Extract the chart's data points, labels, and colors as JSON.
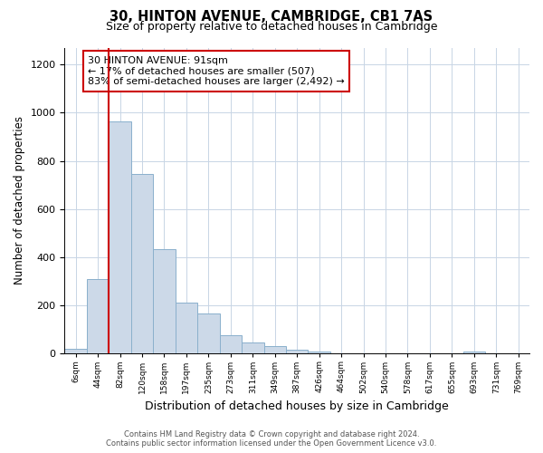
{
  "title": "30, HINTON AVENUE, CAMBRIDGE, CB1 7AS",
  "subtitle": "Size of property relative to detached houses in Cambridge",
  "xlabel": "Distribution of detached houses by size in Cambridge",
  "ylabel": "Number of detached properties",
  "footer_line1": "Contains HM Land Registry data © Crown copyright and database right 2024.",
  "footer_line2": "Contains public sector information licensed under the Open Government Licence v3.0.",
  "bin_labels": [
    "6sqm",
    "44sqm",
    "82sqm",
    "120sqm",
    "158sqm",
    "197sqm",
    "235sqm",
    "273sqm",
    "311sqm",
    "349sqm",
    "387sqm",
    "426sqm",
    "464sqm",
    "502sqm",
    "540sqm",
    "578sqm",
    "617sqm",
    "655sqm",
    "693sqm",
    "731sqm",
    "769sqm"
  ],
  "bar_heights": [
    20,
    310,
    965,
    745,
    435,
    210,
    165,
    75,
    48,
    33,
    18,
    10,
    0,
    0,
    0,
    0,
    0,
    0,
    10,
    0,
    0
  ],
  "bar_color": "#ccd9e8",
  "bar_edge_color": "#8ab0cc",
  "highlight_bar_index": 2,
  "highlight_color": "#cc0000",
  "annotation_title": "30 HINTON AVENUE: 91sqm",
  "annotation_line2": "← 17% of detached houses are smaller (507)",
  "annotation_line3": "83% of semi-detached houses are larger (2,492) →",
  "annotation_box_edgecolor": "#cc0000",
  "annotation_box_facecolor": "#ffffff",
  "ylim": [
    0,
    1270
  ],
  "yticks": [
    0,
    200,
    400,
    600,
    800,
    1000,
    1200
  ],
  "figsize": [
    6.0,
    5.0
  ],
  "dpi": 100
}
